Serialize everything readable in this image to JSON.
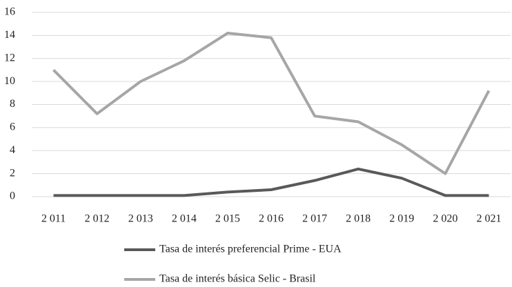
{
  "chart_data": {
    "type": "line",
    "categories": [
      "2 011",
      "2 012",
      "2 013",
      "2 014",
      "2 015",
      "2 016",
      "2 017",
      "2 018",
      "2 019",
      "2 020",
      "2 021"
    ],
    "series": [
      {
        "name": "Tasa de interés preferencial Prime - EUA",
        "color": "#595959",
        "values": [
          0.1,
          0.1,
          0.1,
          0.1,
          0.4,
          0.6,
          1.4,
          2.4,
          1.6,
          0.1,
          0.1
        ]
      },
      {
        "name": "Tasa de interés básica Selic - Brasil",
        "color": "#a6a6a6",
        "values": [
          11.0,
          7.2,
          10.0,
          11.8,
          14.2,
          13.8,
          7.0,
          6.5,
          4.5,
          2.0,
          9.2
        ]
      }
    ],
    "ylim": [
      0,
      16
    ],
    "yticks": [
      0,
      2,
      4,
      6,
      8,
      10,
      12,
      14,
      16
    ],
    "grid": true,
    "legend": "bottom"
  }
}
